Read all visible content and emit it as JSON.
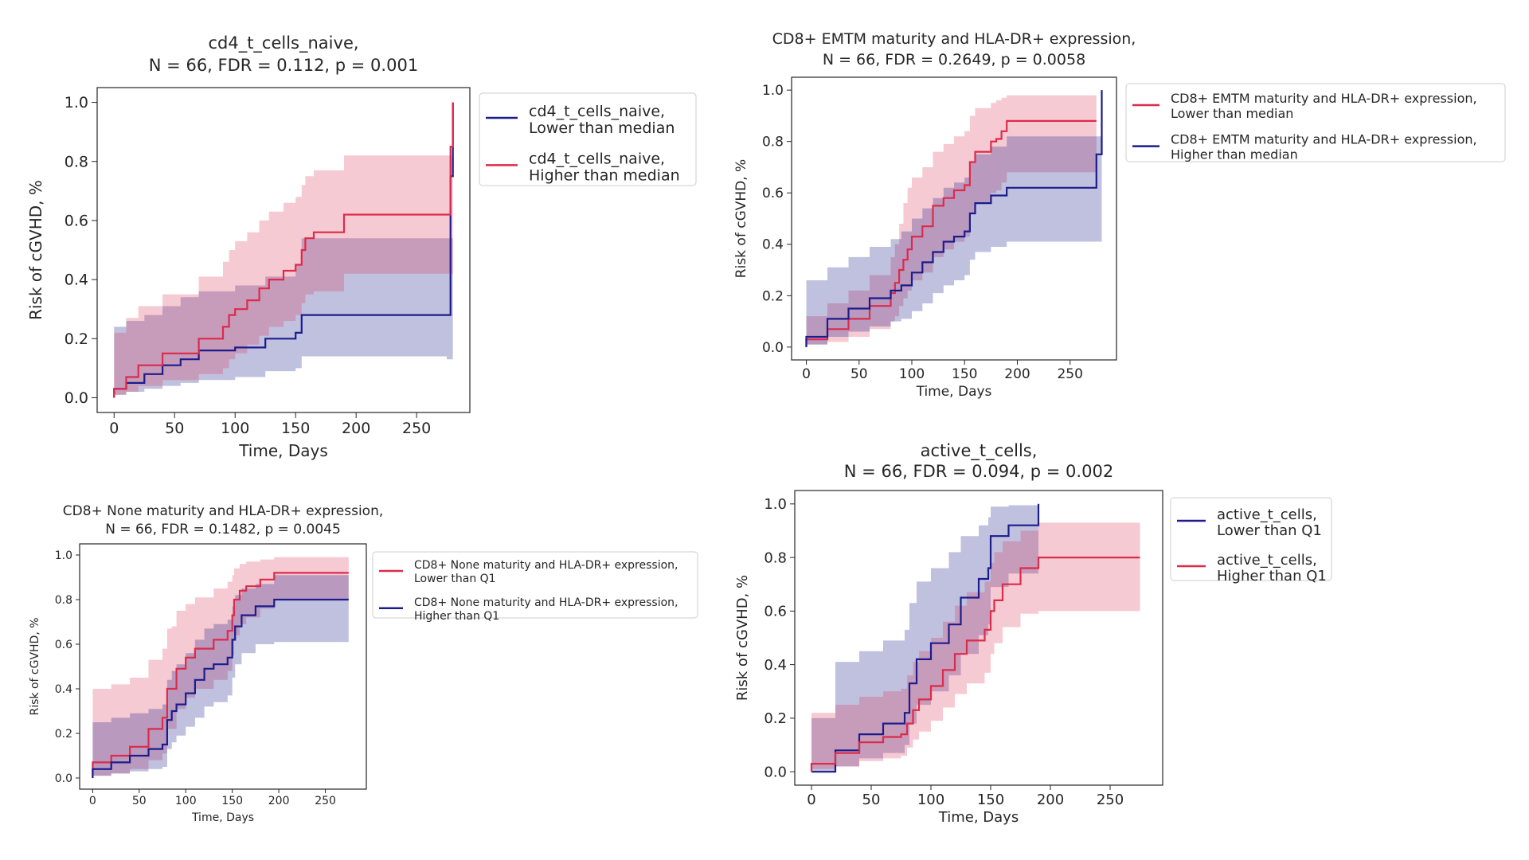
{
  "chart_data": [
    {
      "type": "area",
      "title_lines": [
        "cd4_t_cells_naive,",
        "N = 66, FDR = 0.112, p = 0.001"
      ],
      "xlabel": "Time, Days",
      "ylabel": "Risk of cGVHD, %",
      "xlim": [
        -14,
        294
      ],
      "ylim": [
        -0.05,
        1.05
      ],
      "xticks": [
        0,
        50,
        100,
        150,
        200,
        250
      ],
      "xtick_labels": [
        "0",
        "50",
        "100",
        "150",
        "200",
        "250"
      ],
      "yticks": [
        0,
        0.2,
        0.4,
        0.6,
        0.8,
        1.0
      ],
      "ytick_labels": [
        "0.0",
        "0.2",
        "0.4",
        "0.6",
        "0.8",
        "1.0"
      ],
      "grid": false,
      "legend_position": "outside-right",
      "series": [
        {
          "name": "cd4_t_cells_naive,\nLower than median",
          "color": "#1c1c8c",
          "x": [
            0,
            0,
            10,
            25,
            40,
            55,
            70,
            92,
            100,
            125,
            150,
            155,
            275,
            278,
            280
          ],
          "y": [
            0,
            0.03,
            0.05,
            0.08,
            0.11,
            0.13,
            0.16,
            0.16,
            0.17,
            0.2,
            0.22,
            0.28,
            0.28,
            0.75,
            1.0
          ],
          "upper": [
            0.2,
            0.24,
            0.26,
            0.28,
            0.31,
            0.34,
            0.36,
            0.36,
            0.38,
            0.41,
            0.45,
            0.54,
            0.54,
            0.54,
            0.54
          ],
          "lower": [
            0,
            0.01,
            0.02,
            0.03,
            0.04,
            0.05,
            0.06,
            0.06,
            0.07,
            0.09,
            0.1,
            0.14,
            0.13,
            0.13,
            0.13
          ]
        },
        {
          "name": "cd4_t_cells_naive,\nHigher than median",
          "color": "#dc2b4b",
          "x": [
            0,
            0,
            10,
            20,
            40,
            70,
            90,
            95,
            100,
            110,
            120,
            128,
            140,
            150,
            155,
            158,
            165,
            190,
            275,
            278,
            280
          ],
          "y": [
            0,
            0.03,
            0.07,
            0.11,
            0.15,
            0.2,
            0.24,
            0.28,
            0.3,
            0.33,
            0.37,
            0.4,
            0.43,
            0.45,
            0.5,
            0.54,
            0.56,
            0.62,
            0.62,
            0.85,
            1.0
          ],
          "upper": [
            0.2,
            0.22,
            0.27,
            0.31,
            0.35,
            0.41,
            0.46,
            0.5,
            0.53,
            0.56,
            0.6,
            0.63,
            0.66,
            0.68,
            0.72,
            0.75,
            0.77,
            0.82,
            0.82,
            0.82,
            0.82
          ],
          "lower": [
            0,
            0.01,
            0.02,
            0.04,
            0.06,
            0.08,
            0.1,
            0.13,
            0.15,
            0.18,
            0.21,
            0.24,
            0.26,
            0.28,
            0.32,
            0.35,
            0.36,
            0.42,
            0.42,
            0.42,
            0.42
          ]
        }
      ]
    },
    {
      "type": "area",
      "title_lines": [
        "CD8+ EMTM maturity and HLA-DR+ expression,",
        "N = 66, FDR = 0.2649, p = 0.0058"
      ],
      "xlabel": "Time, Days",
      "ylabel": "Risk of cGVHD, %",
      "xlim": [
        -14,
        294
      ],
      "ylim": [
        -0.05,
        1.05
      ],
      "xticks": [
        0,
        50,
        100,
        150,
        200,
        250
      ],
      "xtick_labels": [
        "0",
        "50",
        "100",
        "150",
        "200",
        "250"
      ],
      "yticks": [
        0,
        0.2,
        0.4,
        0.6,
        0.8,
        1.0
      ],
      "ytick_labels": [
        "0.0",
        "0.2",
        "0.4",
        "0.6",
        "0.8",
        "1.0"
      ],
      "grid": false,
      "legend_position": "outside-right",
      "series": [
        {
          "name": "CD8+ EMTM maturity and HLA-DR+ expression,\nLower than median",
          "color": "#dc2b4b",
          "x": [
            0,
            0,
            20,
            40,
            60,
            80,
            84,
            88,
            92,
            96,
            100,
            110,
            120,
            130,
            140,
            150,
            155,
            160,
            175,
            180,
            185,
            190,
            275
          ],
          "y": [
            0,
            0.03,
            0.07,
            0.11,
            0.16,
            0.21,
            0.25,
            0.3,
            0.34,
            0.38,
            0.43,
            0.47,
            0.55,
            0.58,
            0.61,
            0.63,
            0.72,
            0.76,
            0.8,
            0.81,
            0.84,
            0.88,
            0.88
          ],
          "upper": [
            0.1,
            0.12,
            0.17,
            0.22,
            0.28,
            0.35,
            0.4,
            0.48,
            0.56,
            0.62,
            0.66,
            0.7,
            0.76,
            0.79,
            0.82,
            0.84,
            0.9,
            0.93,
            0.95,
            0.96,
            0.97,
            0.98,
            0.98
          ],
          "lower": [
            0,
            0.01,
            0.02,
            0.04,
            0.07,
            0.1,
            0.12,
            0.16,
            0.19,
            0.22,
            0.26,
            0.29,
            0.35,
            0.38,
            0.41,
            0.43,
            0.52,
            0.56,
            0.6,
            0.61,
            0.64,
            0.68,
            0.68
          ]
        },
        {
          "name": "CD8+ EMTM maturity and HLA-DR+ expression,\nHigher than median",
          "color": "#1c1c8c",
          "x": [
            0,
            0,
            20,
            40,
            60,
            80,
            90,
            100,
            110,
            120,
            130,
            140,
            150,
            155,
            160,
            175,
            190,
            272,
            275,
            280
          ],
          "y": [
            0,
            0.04,
            0.11,
            0.15,
            0.19,
            0.22,
            0.24,
            0.29,
            0.33,
            0.37,
            0.41,
            0.43,
            0.45,
            0.52,
            0.56,
            0.59,
            0.62,
            0.62,
            0.75,
            1.0
          ],
          "upper": [
            0.25,
            0.26,
            0.31,
            0.35,
            0.39,
            0.42,
            0.45,
            0.5,
            0.54,
            0.58,
            0.62,
            0.64,
            0.66,
            0.72,
            0.75,
            0.78,
            0.82,
            0.82,
            0.82,
            0.82
          ],
          "lower": [
            0,
            0.01,
            0.04,
            0.06,
            0.08,
            0.1,
            0.11,
            0.14,
            0.17,
            0.21,
            0.24,
            0.26,
            0.28,
            0.34,
            0.37,
            0.39,
            0.41,
            0.41,
            0.41,
            0.41
          ]
        }
      ]
    },
    {
      "type": "area",
      "title_lines": [
        "CD8+ None maturity and HLA-DR+ expression,",
        "N = 66, FDR = 0.1482, p = 0.0045"
      ],
      "xlabel": "Time, Days",
      "ylabel": "Risk of cGVHD, %",
      "xlim": [
        -14,
        294
      ],
      "ylim": [
        -0.05,
        1.05
      ],
      "xticks": [
        0,
        50,
        100,
        150,
        200,
        250
      ],
      "xtick_labels": [
        "0",
        "50",
        "100",
        "150",
        "200",
        "250"
      ],
      "yticks": [
        0,
        0.2,
        0.4,
        0.6,
        0.8,
        1.0
      ],
      "ytick_labels": [
        "0.0",
        "0.2",
        "0.4",
        "0.6",
        "0.8",
        "1.0"
      ],
      "grid": false,
      "legend_position": "outside-right",
      "series": [
        {
          "name": "CD8+ None maturity and HLA-DR+ expression,\nLower than Q1",
          "color": "#dc2b4b",
          "x": [
            0,
            0,
            20,
            40,
            60,
            75,
            80,
            85,
            90,
            100,
            110,
            130,
            145,
            150,
            152,
            158,
            165,
            180,
            195,
            275
          ],
          "y": [
            0,
            0.07,
            0.1,
            0.14,
            0.22,
            0.27,
            0.4,
            0.4,
            0.49,
            0.54,
            0.58,
            0.62,
            0.66,
            0.73,
            0.8,
            0.84,
            0.86,
            0.89,
            0.92,
            0.92
          ],
          "upper": [
            0.38,
            0.4,
            0.42,
            0.45,
            0.53,
            0.58,
            0.67,
            0.68,
            0.75,
            0.78,
            0.81,
            0.85,
            0.88,
            0.91,
            0.94,
            0.96,
            0.97,
            0.98,
            0.99,
            0.99
          ],
          "lower": [
            0,
            0.01,
            0.02,
            0.04,
            0.08,
            0.11,
            0.22,
            0.22,
            0.31,
            0.36,
            0.4,
            0.44,
            0.48,
            0.55,
            0.64,
            0.69,
            0.72,
            0.76,
            0.8,
            0.8
          ]
        },
        {
          "name": "CD8+ None maturity and HLA-DR+ expression,\nHigher than Q1",
          "color": "#1c1c8c",
          "x": [
            0,
            0,
            20,
            40,
            60,
            75,
            80,
            85,
            90,
            100,
            110,
            120,
            130,
            145,
            150,
            153,
            160,
            175,
            195,
            275
          ],
          "y": [
            0,
            0.04,
            0.07,
            0.1,
            0.13,
            0.15,
            0.26,
            0.3,
            0.33,
            0.38,
            0.44,
            0.49,
            0.51,
            0.54,
            0.62,
            0.68,
            0.73,
            0.77,
            0.8,
            0.8
          ],
          "upper": [
            0.24,
            0.25,
            0.27,
            0.29,
            0.31,
            0.33,
            0.44,
            0.48,
            0.51,
            0.56,
            0.62,
            0.67,
            0.69,
            0.71,
            0.77,
            0.82,
            0.85,
            0.87,
            0.91,
            0.91
          ],
          "lower": [
            0,
            0.01,
            0.02,
            0.03,
            0.04,
            0.05,
            0.13,
            0.16,
            0.19,
            0.23,
            0.27,
            0.32,
            0.34,
            0.37,
            0.45,
            0.51,
            0.56,
            0.6,
            0.61,
            0.61
          ]
        }
      ]
    },
    {
      "type": "area",
      "title_lines": [
        "active_t_cells,",
        "N = 66, FDR = 0.094, p = 0.002"
      ],
      "xlabel": "Time, Days",
      "ylabel": "Risk of cGVHD, %",
      "xlim": [
        -14,
        294
      ],
      "ylim": [
        -0.05,
        1.05
      ],
      "xticks": [
        0,
        50,
        100,
        150,
        200,
        250
      ],
      "xtick_labels": [
        "0",
        "50",
        "100",
        "150",
        "200",
        "250"
      ],
      "yticks": [
        0,
        0.2,
        0.4,
        0.6,
        0.8,
        1.0
      ],
      "ytick_labels": [
        "0.0",
        "0.2",
        "0.4",
        "0.6",
        "0.8",
        "1.0"
      ],
      "grid": false,
      "legend_position": "outside-right",
      "series": [
        {
          "name": "active_t_cells,\nLower than Q1",
          "color": "#1c1c8c",
          "x": [
            0,
            0,
            20,
            40,
            60,
            78,
            82,
            88,
            100,
            115,
            125,
            140,
            148,
            150,
            165,
            190
          ],
          "y": [
            0,
            0.0,
            0.08,
            0.14,
            0.18,
            0.22,
            0.33,
            0.42,
            0.48,
            0.55,
            0.65,
            0.72,
            0.76,
            0.88,
            0.92,
            1.0
          ],
          "upper": [
            0,
            0.2,
            0.41,
            0.45,
            0.49,
            0.53,
            0.63,
            0.71,
            0.76,
            0.82,
            0.88,
            0.92,
            0.95,
            0.99,
            0.995,
            1.0
          ],
          "lower": [
            0,
            0.0,
            0.02,
            0.05,
            0.07,
            0.1,
            0.18,
            0.25,
            0.3,
            0.36,
            0.44,
            0.51,
            0.55,
            0.69,
            0.74,
            0.85
          ]
        },
        {
          "name": "active_t_cells,\nHigher than Q1",
          "color": "#dc2b4b",
          "x": [
            0,
            0,
            20,
            40,
            60,
            75,
            80,
            85,
            90,
            100,
            110,
            120,
            130,
            145,
            150,
            153,
            160,
            175,
            190,
            275
          ],
          "y": [
            0,
            0.03,
            0.07,
            0.11,
            0.13,
            0.14,
            0.18,
            0.23,
            0.27,
            0.32,
            0.38,
            0.44,
            0.49,
            0.53,
            0.6,
            0.64,
            0.7,
            0.76,
            0.8,
            0.8
          ],
          "upper": [
            0.2,
            0.22,
            0.25,
            0.28,
            0.3,
            0.31,
            0.36,
            0.41,
            0.45,
            0.5,
            0.56,
            0.62,
            0.67,
            0.71,
            0.78,
            0.82,
            0.86,
            0.9,
            0.93,
            0.93
          ],
          "lower": [
            0,
            0.01,
            0.02,
            0.04,
            0.05,
            0.06,
            0.09,
            0.12,
            0.15,
            0.19,
            0.24,
            0.29,
            0.33,
            0.37,
            0.44,
            0.48,
            0.54,
            0.59,
            0.6,
            0.6
          ]
        }
      ]
    }
  ]
}
